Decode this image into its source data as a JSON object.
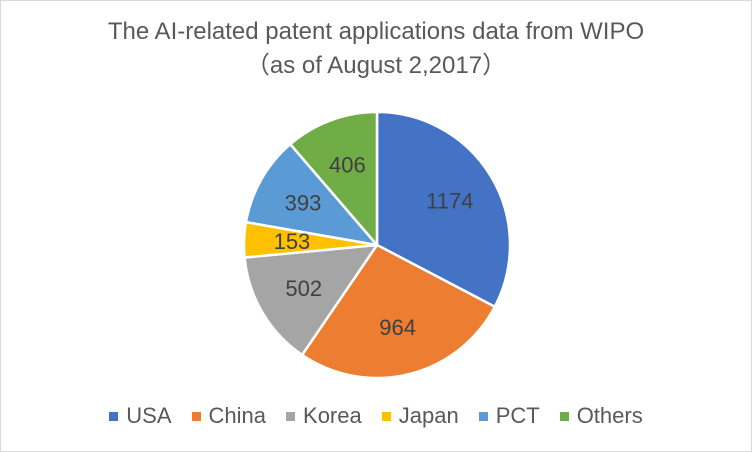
{
  "chart_data": {
    "type": "pie",
    "title": "The AI-related patent applications data from WIPO",
    "subtitle": "（as of August 2,2017）",
    "categories": [
      "USA",
      "China",
      "Korea",
      "Japan",
      "PCT",
      "Others"
    ],
    "values": [
      1174,
      964,
      502,
      153,
      393,
      406
    ],
    "colors": [
      "#4472C4",
      "#ED7D31",
      "#A5A5A5",
      "#FFC000",
      "#5B9BD5",
      "#70AD47"
    ],
    "data_labels_shown": true,
    "legend_position": "bottom",
    "start_angle_deg": 0,
    "direction": "clockwise"
  }
}
